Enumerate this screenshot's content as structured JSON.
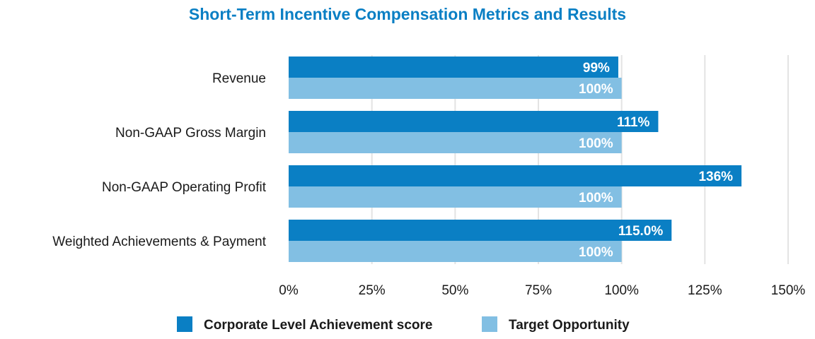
{
  "chart_data": {
    "type": "bar",
    "orientation": "horizontal",
    "title": "Short-Term Incentive Compensation Metrics and Results",
    "categories": [
      "Revenue",
      "Non-GAAP Gross Margin",
      "Non-GAAP Operating Profit",
      "Weighted Achievements & Payment"
    ],
    "series": [
      {
        "name": "Corporate Level Achievement score",
        "values": [
          99,
          111,
          136,
          115.0
        ],
        "labels": [
          "99%",
          "111%",
          "136%",
          "115.0%"
        ],
        "color": "#0a7fc4"
      },
      {
        "name": "Target Opportunity",
        "values": [
          100,
          100,
          100,
          100
        ],
        "labels": [
          "100%",
          "100%",
          "100%",
          "100%"
        ],
        "color": "#82bfe3"
      }
    ],
    "xlim": [
      0,
      150
    ],
    "xticks": [
      0,
      25,
      50,
      75,
      100,
      125,
      150
    ],
    "xtick_labels": [
      "0%",
      "25%",
      "50%",
      "75%",
      "100%",
      "125%",
      "150%"
    ],
    "xlabel": "",
    "ylabel": "",
    "grid": "vertical",
    "legend_position": "bottom-center"
  }
}
